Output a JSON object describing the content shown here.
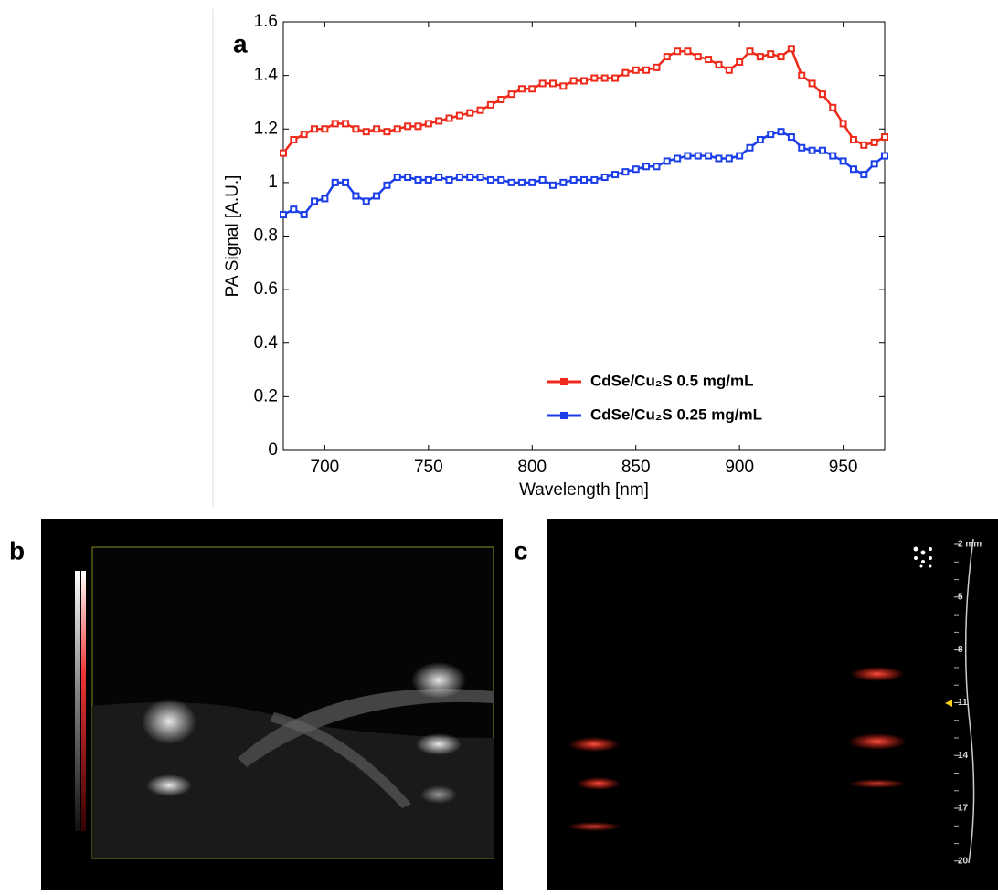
{
  "panels": [
    "a",
    "b",
    "c"
  ],
  "chart_data": {
    "type": "line",
    "x_label": "Wavelength [nm]",
    "y_label": "PA Signal [A.U.]",
    "xlim": [
      680,
      970
    ],
    "xticks": [
      700,
      750,
      800,
      850,
      900,
      950
    ],
    "ylim": [
      0,
      1.6
    ],
    "yticks": [
      0,
      0.2,
      0.4,
      0.6,
      0.8,
      1,
      1.2,
      1.4,
      1.6
    ],
    "x": [
      680,
      685,
      690,
      695,
      700,
      705,
      710,
      715,
      720,
      725,
      730,
      735,
      740,
      745,
      750,
      755,
      760,
      765,
      770,
      775,
      780,
      785,
      790,
      795,
      800,
      805,
      810,
      815,
      820,
      825,
      830,
      835,
      840,
      845,
      850,
      855,
      860,
      865,
      870,
      875,
      880,
      885,
      890,
      895,
      900,
      905,
      910,
      915,
      920,
      925,
      930,
      935,
      940,
      945,
      950,
      955,
      960,
      965,
      970
    ],
    "legend_position": "lower right",
    "series": [
      {
        "name": "CdSe/Cu₂S 0.5 mg/mL",
        "color": "#ee2a1b",
        "values": [
          1.11,
          1.16,
          1.18,
          1.2,
          1.2,
          1.22,
          1.22,
          1.2,
          1.19,
          1.2,
          1.19,
          1.2,
          1.21,
          1.21,
          1.22,
          1.23,
          1.24,
          1.25,
          1.26,
          1.27,
          1.29,
          1.31,
          1.33,
          1.35,
          1.35,
          1.37,
          1.37,
          1.36,
          1.38,
          1.38,
          1.39,
          1.39,
          1.39,
          1.41,
          1.42,
          1.42,
          1.43,
          1.47,
          1.49,
          1.49,
          1.47,
          1.46,
          1.44,
          1.42,
          1.45,
          1.49,
          1.47,
          1.48,
          1.47,
          1.5,
          1.4,
          1.37,
          1.33,
          1.28,
          1.22,
          1.16,
          1.14,
          1.15,
          1.17
        ]
      },
      {
        "name": "CdSe/Cu₂S 0.25 mg/mL",
        "color": "#1b3ee8",
        "values": [
          0.88,
          0.9,
          0.88,
          0.93,
          0.94,
          1.0,
          1.0,
          0.95,
          0.93,
          0.95,
          0.99,
          1.02,
          1.02,
          1.01,
          1.01,
          1.02,
          1.01,
          1.02,
          1.02,
          1.02,
          1.01,
          1.01,
          1.0,
          1.0,
          1.0,
          1.01,
          0.99,
          1.0,
          1.01,
          1.01,
          1.01,
          1.02,
          1.03,
          1.04,
          1.05,
          1.06,
          1.06,
          1.08,
          1.09,
          1.1,
          1.1,
          1.1,
          1.09,
          1.09,
          1.1,
          1.13,
          1.16,
          1.18,
          1.19,
          1.17,
          1.13,
          1.12,
          1.12,
          1.1,
          1.08,
          1.05,
          1.03,
          1.07,
          1.1
        ]
      }
    ]
  },
  "image_c": {
    "depth_labels": [
      "2 mm",
      "5",
      "8",
      "11",
      "14",
      "17",
      "20"
    ]
  }
}
